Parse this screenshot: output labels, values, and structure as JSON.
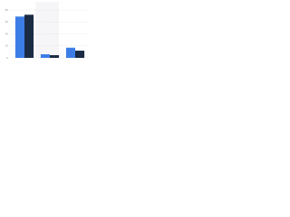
{
  "chart_data": {
    "type": "bar",
    "categories": [
      null,
      null,
      null
    ],
    "series": [
      {
        "color": "#3d7ee6",
        "values": [
          69,
          6,
          17
        ]
      },
      {
        "color": "#1b2b44",
        "values": [
          72,
          4.5,
          12
        ]
      }
    ],
    "ylim": [
      0,
      80
    ],
    "yticks": [
      0,
      20,
      40,
      60,
      80
    ],
    "grid": true
  }
}
